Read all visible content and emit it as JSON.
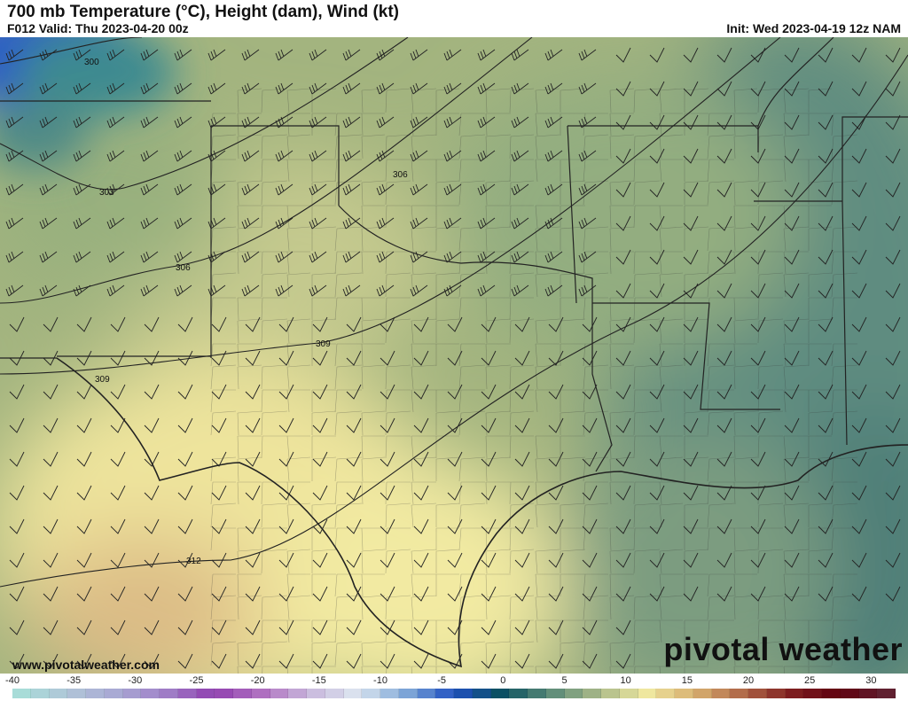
{
  "header": {
    "title": "700 mb Temperature (°C), Height (dam), Wind (kt)",
    "valid": "F012 Valid: Thu 2023-04-20 00z",
    "init": "Init: Wed 2023-04-19 12z NAM"
  },
  "map": {
    "height_contours": [
      "300",
      "303",
      "306",
      "306",
      "309",
      "309",
      "312"
    ],
    "colors": {
      "cold": "#2f5fc0",
      "cool": "#5d8c84",
      "mid": "#9fb27e",
      "warm": "#e9e39a",
      "hot": "#d9b880"
    }
  },
  "footer": {
    "url": "www.pivotalweather.com",
    "logo": "pivotal weather"
  },
  "colorbar": {
    "labels": [
      "-40",
      "-35",
      "-30",
      "-25",
      "-20",
      "-15",
      "-10",
      "-5",
      "0",
      "5",
      "10",
      "15",
      "20",
      "25",
      "30"
    ],
    "range": [
      -40,
      32
    ],
    "colors": [
      "#a8dcd8",
      "#b0c4d8",
      "#a8a8d4",
      "#a080c8",
      "#9040b0",
      "#b070c0",
      "#c8b8dc",
      "#dce6f0",
      "#80a8d8",
      "#2050c0",
      "#0a5060",
      "#5a8a78",
      "#a8b888",
      "#f0e8a0",
      "#d8b070",
      "#b06848",
      "#802020",
      "#600010",
      "#602030"
    ]
  }
}
